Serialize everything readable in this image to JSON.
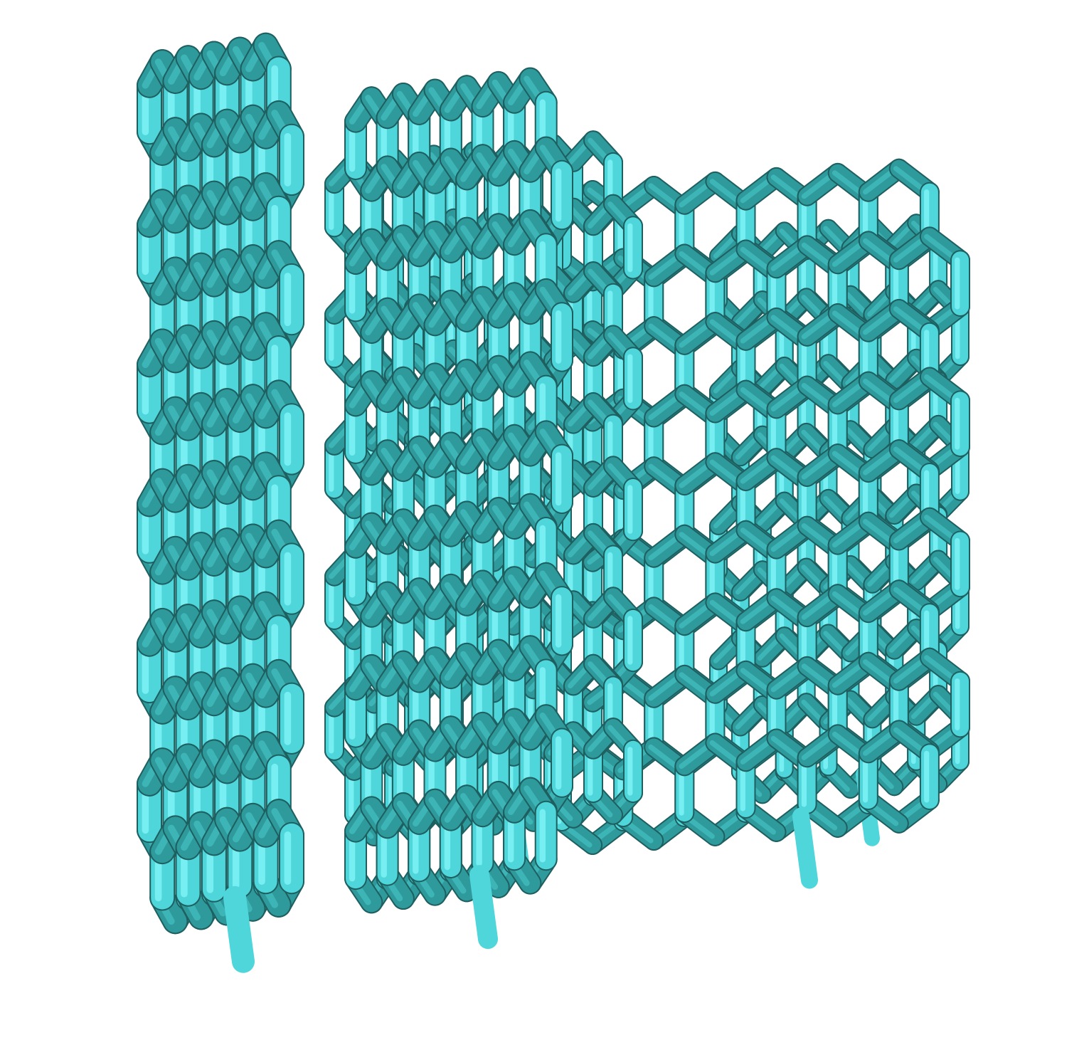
{
  "colors": {
    "background": "#ffffff",
    "bond_dark": "#1e5f60",
    "bond_mid": "#2f9a9c",
    "bond_light": "#4fd6da",
    "bond_highlight": "#7ef2f4"
  },
  "scene": {
    "subject": "stacked-graphene-sheets",
    "sheet_count": 5,
    "lattice": "hexagonal",
    "rendering": "licorice-bonds"
  }
}
